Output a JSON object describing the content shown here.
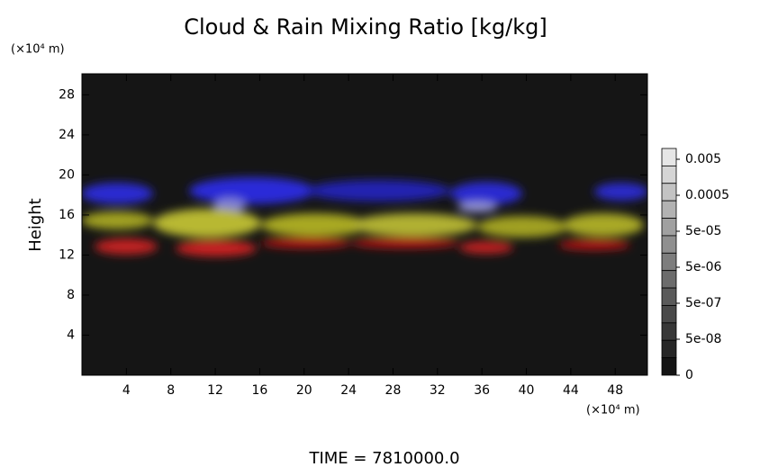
{
  "chart_data": {
    "type": "heatmap",
    "title": "Cloud & Rain Mixing Ratio [kg/kg]",
    "y_unit": "(×10⁴ m)",
    "x_unit": "(×10⁴ m)",
    "y_label": "Height",
    "footer": "TIME = 7810000.0",
    "xlim": [
      0,
      50.9
    ],
    "ylim": [
      0,
      30.1
    ],
    "xticks": [
      4,
      8,
      12,
      16,
      20,
      24,
      28,
      32,
      36,
      40,
      44,
      48
    ],
    "yticks": [
      4,
      8,
      12,
      16,
      20,
      24,
      28
    ],
    "colorbar_ticks": [
      {
        "value": 0.005,
        "label": "0.005"
      },
      {
        "value": 0.0005,
        "label": "0.0005"
      },
      {
        "value": 5e-05,
        "label": "5e-05"
      },
      {
        "value": 5e-06,
        "label": "5e-06"
      },
      {
        "value": 5e-07,
        "label": "5e-07"
      },
      {
        "value": 5e-08,
        "label": "5e-08"
      },
      0
    ]
  }
}
